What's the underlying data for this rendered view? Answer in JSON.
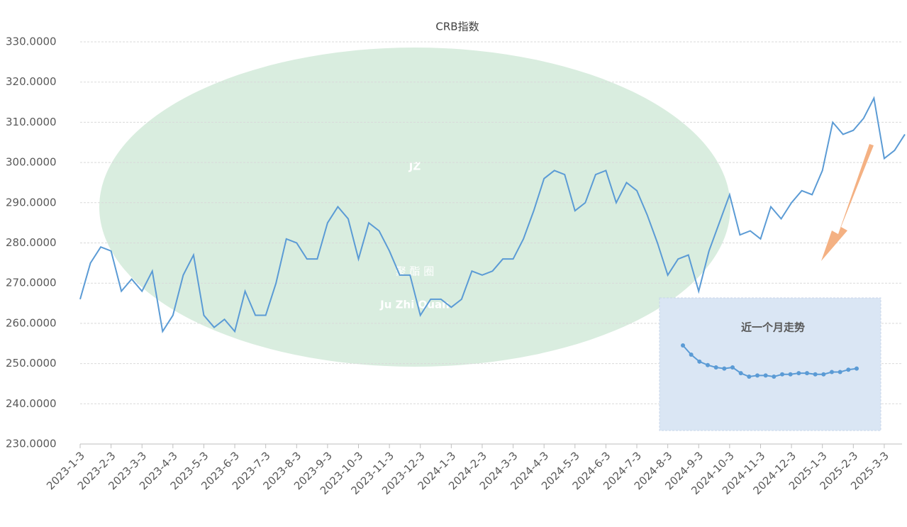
{
  "chart_data": [
    {
      "type": "line",
      "title": "CRB指数",
      "categories": [
        "2023-1-3",
        null,
        null,
        "2023-2-3",
        null,
        null,
        "2023-3-3",
        null,
        null,
        "2023-4-3",
        null,
        null,
        "2023-5-3",
        null,
        null,
        "2023-6-3",
        null,
        null,
        "2023-7-3",
        null,
        null,
        "2023-8-3",
        null,
        null,
        "2023-9-3",
        null,
        null,
        "2023-10-3",
        null,
        null,
        "2023-11-3",
        null,
        null,
        "2023-12-3",
        null,
        null,
        "2024-1-3",
        null,
        null,
        "2024-2-3",
        null,
        null,
        "2024-3-3",
        null,
        null,
        "2024-4-3",
        null,
        null,
        "2024-5-3",
        null,
        null,
        "2024-6-3",
        null,
        null,
        "2024-7-3",
        null,
        null,
        "2024-8-3",
        null,
        null,
        "2024-9-3",
        null,
        null,
        "2024-10-3",
        null,
        null,
        "2024-11-3",
        null,
        null,
        "2024-12-3",
        null,
        null,
        "2025-1-3",
        null,
        null,
        "2025-2-3",
        null,
        null,
        "2025-3-3",
        null,
        null
      ],
      "series": [
        {
          "name": "CRB指数",
          "color": "#5b9bd5",
          "values": [
            266,
            275,
            279,
            278,
            268,
            271,
            268,
            273,
            258,
            262,
            272,
            277,
            262,
            259,
            261,
            258,
            268,
            262,
            262,
            270,
            281,
            280,
            276,
            276,
            285,
            289,
            286,
            276,
            285,
            283,
            278,
            272,
            272,
            262,
            266,
            266,
            264,
            266,
            273,
            272,
            273,
            276,
            276,
            281,
            288,
            296,
            298,
            297,
            288,
            290,
            297,
            298,
            290,
            295,
            293,
            287,
            280,
            272,
            276,
            277,
            268,
            278,
            285,
            292,
            282,
            283,
            281,
            289,
            286,
            290,
            293,
            292,
            298,
            310,
            307,
            308,
            311,
            316,
            301,
            303,
            307
          ]
        }
      ],
      "ylim": [
        230,
        330
      ],
      "yticks": [
        {
          "value": 230,
          "label": "230.0000"
        },
        {
          "value": 240,
          "label": "240.0000"
        },
        {
          "value": 250,
          "label": "250.0000"
        },
        {
          "value": 260,
          "label": "260.0000"
        },
        {
          "value": 270,
          "label": "270.0000"
        },
        {
          "value": 280,
          "label": "280.0000"
        },
        {
          "value": 290,
          "label": "290.0000"
        },
        {
          "value": 300,
          "label": "300.0000"
        },
        {
          "value": 310,
          "label": "310.0000"
        },
        {
          "value": 320,
          "label": "320.0000"
        },
        {
          "value": 330,
          "label": "330.0000"
        }
      ],
      "grid": true,
      "watermark": {
        "logo": "JZ",
        "chinese": "聚 酯 圈",
        "latin": "Ju Zhi Quan"
      }
    },
    {
      "type": "line",
      "title": "近一个月走势",
      "series": [
        {
          "name": "近一个月走势",
          "color": "#5b9bd5",
          "values": [
            316,
            312,
            309,
            307.5,
            306.5,
            306,
            306.5,
            304,
            302.5,
            303,
            303,
            302.5,
            303.5,
            303.5,
            304,
            304,
            303.5,
            303.5,
            304.5,
            304.5,
            305.5,
            306
          ]
        }
      ]
    }
  ]
}
